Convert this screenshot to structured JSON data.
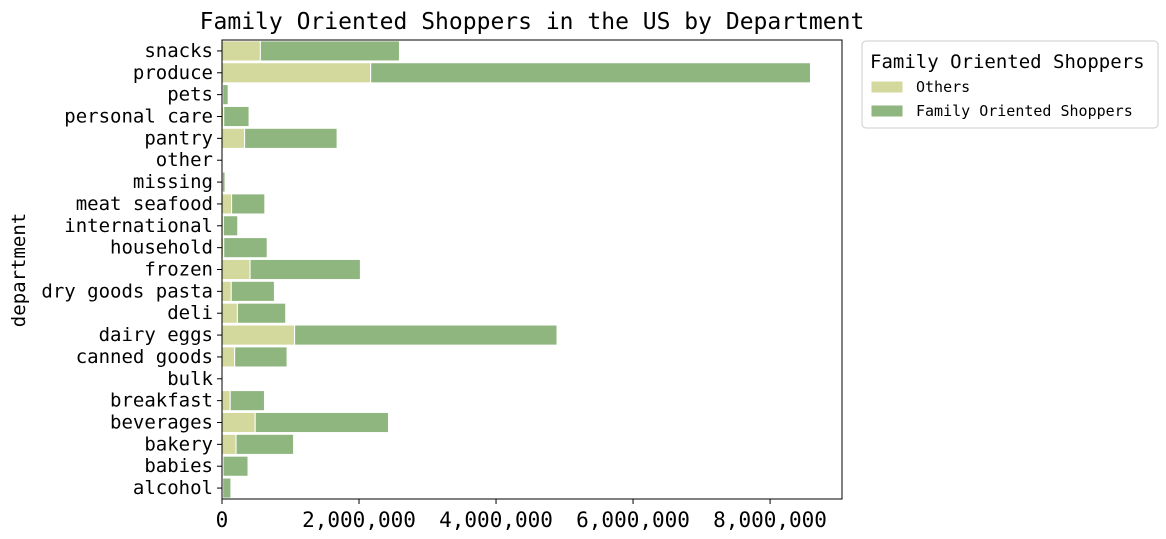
{
  "chart_data": {
    "type": "bar",
    "orientation": "horizontal",
    "stacked": true,
    "title": "Family Oriented Shoppers in the US by Department",
    "xlabel": "",
    "ylabel": "department",
    "xlim": [
      0,
      9050000
    ],
    "xticks": [
      0,
      2000000,
      4000000,
      6000000,
      8000000
    ],
    "xtick_labels": [
      "0",
      "2,000,000",
      "4,000,000",
      "6,000,000",
      "8,000,000"
    ],
    "categories": [
      "alcohol",
      "babies",
      "bakery",
      "beverages",
      "breakfast",
      "bulk",
      "canned goods",
      "dairy eggs",
      "deli",
      "dry goods pasta",
      "frozen",
      "household",
      "international",
      "meat seafood",
      "missing",
      "other",
      "pantry",
      "personal care",
      "pets",
      "produce",
      "snacks"
    ],
    "series": [
      {
        "name": "Others",
        "color": "#d3d89c",
        "values": [
          10000,
          15000,
          205000,
          485000,
          120000,
          2000,
          185000,
          1060000,
          225000,
          135000,
          410000,
          25000,
          20000,
          140000,
          5000,
          2000,
          330000,
          25000,
          10000,
          2170000,
          560000
        ]
      },
      {
        "name": "Family Oriented Shoppers",
        "color": "#8fb67f",
        "values": [
          120000,
          365000,
          840000,
          1945000,
          500000,
          8000,
          765000,
          3830000,
          705000,
          630000,
          1610000,
          635000,
          210000,
          485000,
          40000,
          9000,
          1350000,
          370000,
          80000,
          6420000,
          2030000
        ]
      }
    ],
    "legend": {
      "title": "Family Oriented Shoppers",
      "placement": "outside-top-right"
    }
  }
}
